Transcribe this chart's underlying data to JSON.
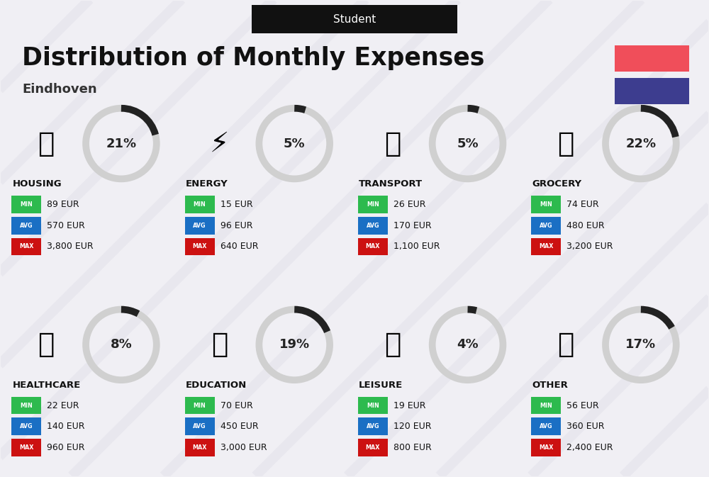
{
  "title": "Distribution of Monthly Expenses",
  "subtitle": "Eindhoven",
  "header_label": "Student",
  "bg_color": "#f0eff4",
  "header_bg": "#111111",
  "header_text_color": "#ffffff",
  "title_color": "#111111",
  "subtitle_color": "#333333",
  "flag_red": "#f04e5a",
  "flag_blue": "#3d3d8f",
  "min_color": "#2dba4e",
  "avg_color": "#1a6fc4",
  "max_color": "#cc1111",
  "category_title_color": "#111111",
  "donut_bg": "#d0d0d0",
  "donut_fill": "#222222",
  "categories": [
    {
      "name": "HOUSING",
      "pct": 21,
      "min": "89 EUR",
      "avg": "570 EUR",
      "max": "3,800 EUR",
      "row": 0,
      "col": 0
    },
    {
      "name": "ENERGY",
      "pct": 5,
      "min": "15 EUR",
      "avg": "96 EUR",
      "max": "640 EUR",
      "row": 0,
      "col": 1
    },
    {
      "name": "TRANSPORT",
      "pct": 5,
      "min": "26 EUR",
      "avg": "170 EUR",
      "max": "1,100 EUR",
      "row": 0,
      "col": 2
    },
    {
      "name": "GROCERY",
      "pct": 22,
      "min": "74 EUR",
      "avg": "480 EUR",
      "max": "3,200 EUR",
      "row": 0,
      "col": 3
    },
    {
      "name": "HEALTHCARE",
      "pct": 8,
      "min": "22 EUR",
      "avg": "140 EUR",
      "max": "960 EUR",
      "row": 1,
      "col": 0
    },
    {
      "name": "EDUCATION",
      "pct": 19,
      "min": "70 EUR",
      "avg": "450 EUR",
      "max": "3,000 EUR",
      "row": 1,
      "col": 1
    },
    {
      "name": "LEISURE",
      "pct": 4,
      "min": "19 EUR",
      "avg": "120 EUR",
      "max": "800 EUR",
      "row": 1,
      "col": 2
    },
    {
      "name": "OTHER",
      "pct": 17,
      "min": "56 EUR",
      "avg": "360 EUR",
      "max": "2,400 EUR",
      "row": 1,
      "col": 3
    }
  ],
  "icon_names": [
    "HOUSING",
    "ENERGY",
    "TRANSPORT",
    "GROCERY",
    "HEALTHCARE",
    "EDUCATION",
    "LEISURE",
    "OTHER"
  ],
  "row_tops": [
    4.95,
    2.1
  ],
  "col_lefts": [
    0.12,
    2.57,
    5.02,
    7.47
  ],
  "stripe_color": "#e2e1ea",
  "stripe_alpha": 0.55
}
